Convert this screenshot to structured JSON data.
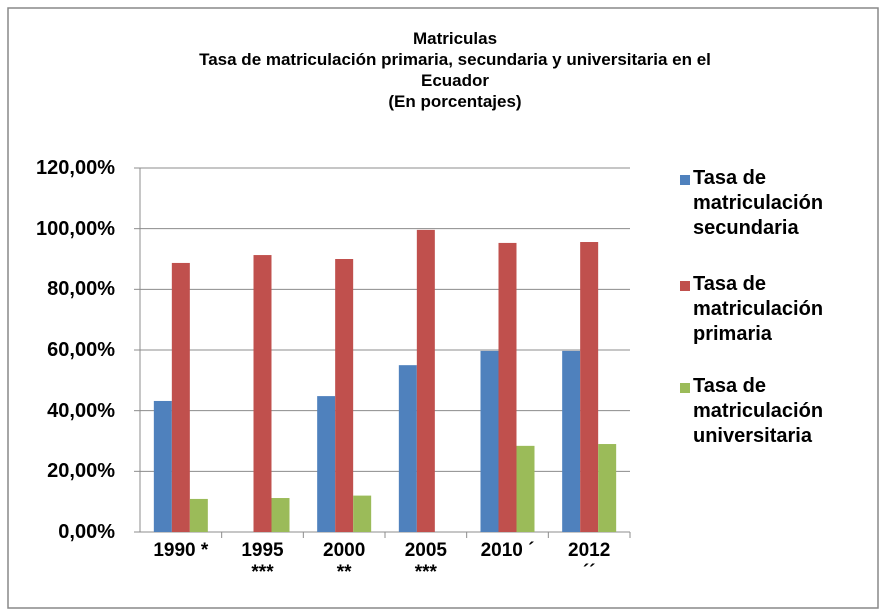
{
  "chart_data": {
    "type": "bar",
    "title": "Matriculas",
    "subtitle": "Tasa de matriculación primaria, secundaria y universitaria en el Ecuador",
    "units": "(En porcentajes)",
    "categories": [
      "1990 *",
      "1995\n***",
      "2000\n**",
      "2005\n***",
      "2010 ´",
      "2012\n´´"
    ],
    "series": [
      {
        "name": "Tasa de matriculación secundaria",
        "color": "#4f81bd",
        "values": [
          43.2,
          null,
          44.8,
          55,
          59.7,
          59.7
        ]
      },
      {
        "name": "Tasa de matriculación primaria",
        "color": "#c0504d",
        "values": [
          88.7,
          91.3,
          90,
          99.6,
          95.3,
          95.6
        ]
      },
      {
        "name": "Tasa de matriculación universitaria",
        "color": "#9bbb59",
        "values": [
          10.9,
          11.2,
          12,
          null,
          28.4,
          29
        ]
      }
    ],
    "ylim": [
      0,
      120
    ],
    "yticks": [
      {
        "value": 0,
        "label": "0,00%"
      },
      {
        "value": 20,
        "label": "20,00%"
      },
      {
        "value": 40,
        "label": "40,00%"
      },
      {
        "value": 60,
        "label": "60,00%"
      },
      {
        "value": 80,
        "label": "80,00%"
      },
      {
        "value": 100,
        "label": "100,00%"
      },
      {
        "value": 120,
        "label": "120,00%"
      }
    ],
    "grid": true,
    "legend": "right"
  }
}
